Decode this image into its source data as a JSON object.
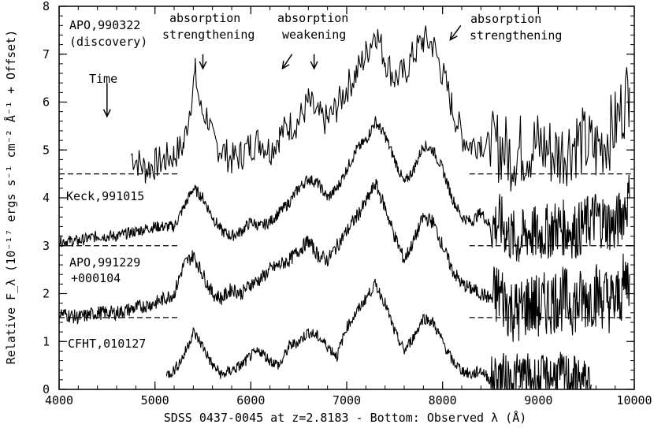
{
  "chart_data": {
    "type": "line",
    "xlabel": "SDSS 0437-0045 at z=2.8183 - Bottom: Observed λ (Å)",
    "ylabel": "Relative F_λ (10⁻¹⁷ ergs s⁻¹ cm⁻² Å⁻¹ + Offset)",
    "xlim": [
      4000,
      10000
    ],
    "ylim": [
      0,
      8
    ],
    "x_ticks": [
      {
        "value": 4000,
        "label": "4000"
      },
      {
        "value": 5000,
        "label": "5000"
      },
      {
        "value": 6000,
        "label": "6000"
      },
      {
        "value": 7000,
        "label": "7000"
      },
      {
        "value": 8000,
        "label": "8000"
      },
      {
        "value": 9000,
        "label": "9000"
      },
      {
        "value": 10000,
        "label": "10000"
      }
    ],
    "y_ticks": [
      {
        "value": 0,
        "label": "0"
      },
      {
        "value": 1,
        "label": "1"
      },
      {
        "value": 2,
        "label": "2"
      },
      {
        "value": 3,
        "label": "3"
      },
      {
        "value": 4,
        "label": "4"
      },
      {
        "value": 5,
        "label": "5"
      },
      {
        "value": 6,
        "label": "6"
      },
      {
        "value": 7,
        "label": "7"
      },
      {
        "value": 8,
        "label": "8"
      }
    ],
    "grid": false,
    "series": [
      {
        "name": "APO,990322 (discovery)",
        "offset": 4.5,
        "points": [
          [
            4750,
            4.9
          ],
          [
            4900,
            4.6
          ],
          [
            5000,
            4.7
          ],
          [
            5100,
            4.8
          ],
          [
            5200,
            4.9
          ],
          [
            5300,
            5.1
          ],
          [
            5380,
            6.1
          ],
          [
            5420,
            6.6
          ],
          [
            5480,
            5.8
          ],
          [
            5550,
            5.7
          ],
          [
            5600,
            5.2
          ],
          [
            5700,
            5.0
          ],
          [
            5800,
            4.8
          ],
          [
            5900,
            4.9
          ],
          [
            6000,
            5.1
          ],
          [
            6100,
            5.2
          ],
          [
            6200,
            5.0
          ],
          [
            6300,
            5.3
          ],
          [
            6400,
            5.5
          ],
          [
            6500,
            5.6
          ],
          [
            6600,
            6.0
          ],
          [
            6700,
            5.7
          ],
          [
            6800,
            5.6
          ],
          [
            6900,
            5.9
          ],
          [
            7000,
            6.3
          ],
          [
            7100,
            6.6
          ],
          [
            7200,
            7.0
          ],
          [
            7300,
            7.5
          ],
          [
            7400,
            6.9
          ],
          [
            7500,
            6.5
          ],
          [
            7600,
            6.6
          ],
          [
            7700,
            7.0
          ],
          [
            7800,
            7.3
          ],
          [
            7900,
            7.2
          ],
          [
            8000,
            6.6
          ],
          [
            8100,
            5.9
          ],
          [
            8200,
            5.3
          ],
          [
            8300,
            5.1
          ],
          [
            8400,
            5.2
          ],
          [
            8500,
            5.0
          ],
          [
            8600,
            5.1
          ],
          [
            8700,
            4.9
          ],
          [
            8800,
            5.0
          ],
          [
            9000,
            5.1
          ],
          [
            9200,
            4.9
          ],
          [
            9400,
            5.2
          ],
          [
            9600,
            5.0
          ],
          [
            9800,
            5.5
          ],
          [
            9950,
            6.3
          ]
        ],
        "continuum": [
          [
            4000,
            4.5
          ],
          [
            5250,
            4.5
          ],
          [
            8280,
            4.5
          ],
          [
            10000,
            4.5
          ]
        ]
      },
      {
        "name": "Keck,991015",
        "offset": 3.0,
        "points": [
          [
            4000,
            3.1
          ],
          [
            4200,
            3.1
          ],
          [
            4400,
            3.2
          ],
          [
            4600,
            3.2
          ],
          [
            4800,
            3.3
          ],
          [
            5000,
            3.4
          ],
          [
            5200,
            3.4
          ],
          [
            5300,
            3.8
          ],
          [
            5400,
            4.2
          ],
          [
            5500,
            4.0
          ],
          [
            5600,
            3.6
          ],
          [
            5700,
            3.3
          ],
          [
            5800,
            3.2
          ],
          [
            5900,
            3.3
          ],
          [
            6000,
            3.5
          ],
          [
            6100,
            3.4
          ],
          [
            6200,
            3.5
          ],
          [
            6300,
            3.7
          ],
          [
            6400,
            3.9
          ],
          [
            6500,
            4.2
          ],
          [
            6600,
            4.4
          ],
          [
            6700,
            4.3
          ],
          [
            6800,
            4.0
          ],
          [
            6900,
            4.2
          ],
          [
            7000,
            4.6
          ],
          [
            7100,
            5.0
          ],
          [
            7200,
            5.2
          ],
          [
            7300,
            5.6
          ],
          [
            7400,
            5.3
          ],
          [
            7500,
            4.8
          ],
          [
            7600,
            4.3
          ],
          [
            7700,
            4.6
          ],
          [
            7800,
            5.1
          ],
          [
            7900,
            5.0
          ],
          [
            8000,
            4.6
          ],
          [
            8100,
            4.0
          ],
          [
            8200,
            3.6
          ],
          [
            8300,
            3.5
          ],
          [
            8400,
            3.7
          ],
          [
            8500,
            3.4
          ],
          [
            8600,
            3.5
          ],
          [
            8700,
            3.2
          ],
          [
            8800,
            3.1
          ],
          [
            8900,
            3.3
          ],
          [
            9000,
            3.2
          ],
          [
            9200,
            3.4
          ],
          [
            9400,
            3.3
          ],
          [
            9600,
            3.6
          ],
          [
            9800,
            3.4
          ],
          [
            9950,
            4.0
          ]
        ],
        "continuum": [
          [
            4000,
            3.0
          ],
          [
            5250,
            3.0
          ],
          [
            8280,
            3.0
          ],
          [
            10000,
            3.0
          ]
        ]
      },
      {
        "name": "APO,991229 +000104",
        "offset": 1.5,
        "points": [
          [
            4000,
            1.6
          ],
          [
            4200,
            1.5
          ],
          [
            4400,
            1.6
          ],
          [
            4600,
            1.6
          ],
          [
            4800,
            1.7
          ],
          [
            5000,
            1.8
          ],
          [
            5200,
            2.0
          ],
          [
            5300,
            2.6
          ],
          [
            5400,
            2.8
          ],
          [
            5500,
            2.4
          ],
          [
            5600,
            2.0
          ],
          [
            5700,
            1.9
          ],
          [
            5800,
            2.1
          ],
          [
            5900,
            2.0
          ],
          [
            6000,
            2.2
          ],
          [
            6100,
            2.3
          ],
          [
            6200,
            2.5
          ],
          [
            6300,
            2.6
          ],
          [
            6400,
            2.7
          ],
          [
            6500,
            2.9
          ],
          [
            6600,
            3.1
          ],
          [
            6700,
            2.8
          ],
          [
            6800,
            2.7
          ],
          [
            6900,
            3.0
          ],
          [
            7000,
            3.3
          ],
          [
            7100,
            3.6
          ],
          [
            7200,
            3.9
          ],
          [
            7300,
            4.3
          ],
          [
            7400,
            3.8
          ],
          [
            7500,
            3.2
          ],
          [
            7600,
            2.7
          ],
          [
            7700,
            3.1
          ],
          [
            7800,
            3.6
          ],
          [
            7900,
            3.5
          ],
          [
            8000,
            3.0
          ],
          [
            8100,
            2.5
          ],
          [
            8200,
            2.2
          ],
          [
            8300,
            2.1
          ],
          [
            8400,
            2.0
          ],
          [
            8500,
            1.9
          ],
          [
            8600,
            2.0
          ],
          [
            8700,
            1.7
          ],
          [
            8800,
            1.6
          ],
          [
            8900,
            1.8
          ],
          [
            9000,
            1.7
          ],
          [
            9200,
            1.9
          ],
          [
            9400,
            1.8
          ],
          [
            9600,
            2.0
          ],
          [
            9800,
            1.8
          ],
          [
            9950,
            2.4
          ]
        ],
        "continuum": [
          [
            4000,
            1.5
          ],
          [
            5250,
            1.5
          ],
          [
            8280,
            1.5
          ],
          [
            10000,
            1.5
          ]
        ]
      },
      {
        "name": "CFHT,010127",
        "offset": 0,
        "points": [
          [
            5120,
            0.3
          ],
          [
            5200,
            0.4
          ],
          [
            5300,
            0.7
          ],
          [
            5400,
            1.2
          ],
          [
            5500,
            0.9
          ],
          [
            5600,
            0.5
          ],
          [
            5700,
            0.3
          ],
          [
            5800,
            0.4
          ],
          [
            5900,
            0.5
          ],
          [
            6000,
            0.7
          ],
          [
            6100,
            0.8
          ],
          [
            6200,
            0.6
          ],
          [
            6300,
            0.5
          ],
          [
            6400,
            0.9
          ],
          [
            6500,
            1.0
          ],
          [
            6600,
            1.2
          ],
          [
            6700,
            1.1
          ],
          [
            6800,
            0.9
          ],
          [
            6900,
            0.7
          ],
          [
            7000,
            1.3
          ],
          [
            7100,
            1.6
          ],
          [
            7200,
            1.9
          ],
          [
            7300,
            2.2
          ],
          [
            7400,
            1.8
          ],
          [
            7500,
            1.2
          ],
          [
            7600,
            0.8
          ],
          [
            7700,
            1.1
          ],
          [
            7800,
            1.5
          ],
          [
            7900,
            1.4
          ],
          [
            8000,
            1.0
          ],
          [
            8100,
            0.6
          ],
          [
            8200,
            0.4
          ],
          [
            8300,
            0.3
          ],
          [
            8400,
            0.4
          ],
          [
            8500,
            0.2
          ],
          [
            8600,
            0.3
          ],
          [
            8700,
            0.2
          ],
          [
            8800,
            0.3
          ],
          [
            9000,
            0.2
          ],
          [
            9200,
            0.3
          ],
          [
            9400,
            0.2
          ],
          [
            9550,
            0.1
          ]
        ]
      }
    ],
    "annotations": [
      {
        "text": "absorption\nstrengthening",
        "arrow_from": [
          5500,
          7.0
        ],
        "arrow_to": [
          5500,
          6.7
        ]
      },
      {
        "text": "absorption\nweakening",
        "arrow_from": [
          6430,
          7.0
        ],
        "arrow_to": [
          6330,
          6.7
        ]
      },
      {
        "text": "",
        "arrow_from": [
          6660,
          7.0
        ],
        "arrow_to": [
          6660,
          6.7
        ]
      },
      {
        "text": "absorption\nstrengthening",
        "arrow_from": [
          8190,
          7.6
        ],
        "arrow_to": [
          8080,
          7.3
        ]
      },
      {
        "text": "Time",
        "arrow_from": [
          4500,
          6.4
        ],
        "arrow_to": [
          4500,
          5.7
        ]
      }
    ],
    "labels": {
      "apo_990322": "APO,990322",
      "apo_990322_sub": "(discovery)",
      "keck": "Keck,991015",
      "apo_991229": "APO,991229",
      "apo_991229_sub": "+000104",
      "cfht": "CFHT,010127",
      "time": "Time",
      "abs_strength_1": "absorption",
      "abs_strength_1b": "strengthening",
      "abs_weak": "absorption",
      "abs_weak_b": "weakening",
      "abs_strength_2": "absorption",
      "abs_strength_2b": "strengthening"
    }
  }
}
